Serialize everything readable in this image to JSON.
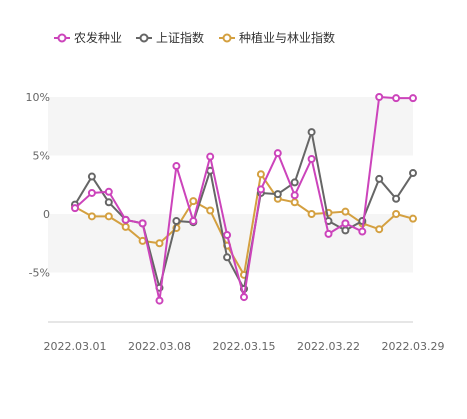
{
  "chart_data": {
    "type": "line",
    "x": [
      "2022.03.01",
      "2022.03.02",
      "2022.03.03",
      "2022.03.04",
      "2022.03.07",
      "2022.03.08",
      "2022.03.09",
      "2022.03.10",
      "2022.03.11",
      "2022.03.14",
      "2022.03.15",
      "2022.03.16",
      "2022.03.17",
      "2022.03.18",
      "2022.03.21",
      "2022.03.22",
      "2022.03.23",
      "2022.03.24",
      "2022.03.25",
      "2022.03.28",
      "2022.03.29"
    ],
    "x_tick_labels": [
      "2022.03.01",
      "2022.03.08",
      "2022.03.15",
      "2022.03.22",
      "2022.03.29"
    ],
    "y_tick_labels": [
      "10%",
      "5%",
      "0",
      "-5%"
    ],
    "ylim": [
      -9,
      12
    ],
    "grid": "alternating bands",
    "legend_position": "top-left",
    "series": [
      {
        "name": "农发种业",
        "color": "#cc44bb",
        "values": [
          0.5,
          1.8,
          1.9,
          -0.5,
          -0.8,
          -7.4,
          4.1,
          -0.6,
          4.9,
          -1.8,
          -7.1,
          2.1,
          5.2,
          1.6,
          4.7,
          -1.7,
          -0.8,
          -1.5,
          10.0,
          9.9,
          9.9
        ]
      },
      {
        "name": "上证指数",
        "color": "#666666",
        "values": [
          0.8,
          3.2,
          1.0,
          -0.5,
          -0.8,
          -6.3,
          -0.6,
          -0.7,
          3.7,
          -3.7,
          -6.4,
          1.8,
          1.7,
          2.7,
          7.0,
          -0.6,
          -1.4,
          -0.6,
          3.0,
          1.3,
          3.5
        ]
      },
      {
        "name": "种植业与林业指数",
        "color": "#d4a040",
        "values": [
          0.6,
          -0.2,
          -0.2,
          -1.1,
          -2.3,
          -2.5,
          -1.2,
          1.1,
          0.3,
          -2.7,
          -5.2,
          3.4,
          1.3,
          1.0,
          0.0,
          0.1,
          0.2,
          -0.8,
          -1.3,
          0.0,
          -0.4
        ]
      }
    ]
  }
}
